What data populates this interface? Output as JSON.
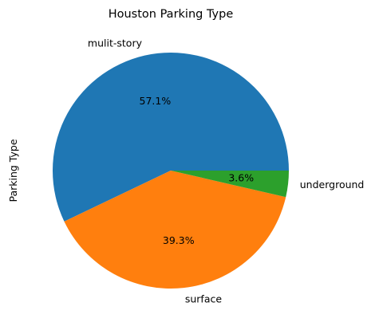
{
  "chart_data": {
    "type": "pie",
    "title": "Houston Parking Type",
    "ylabel": "Parking Type",
    "slices": [
      {
        "label": "mulit-story",
        "value": 57.1,
        "pct_label": "57.1%",
        "color": "#1f77b4"
      },
      {
        "label": "surface",
        "value": 39.3,
        "pct_label": "39.3%",
        "color": "#ff7f0e"
      },
      {
        "label": "underground",
        "value": 3.6,
        "pct_label": "3.6%",
        "color": "#2ca02c"
      }
    ]
  }
}
